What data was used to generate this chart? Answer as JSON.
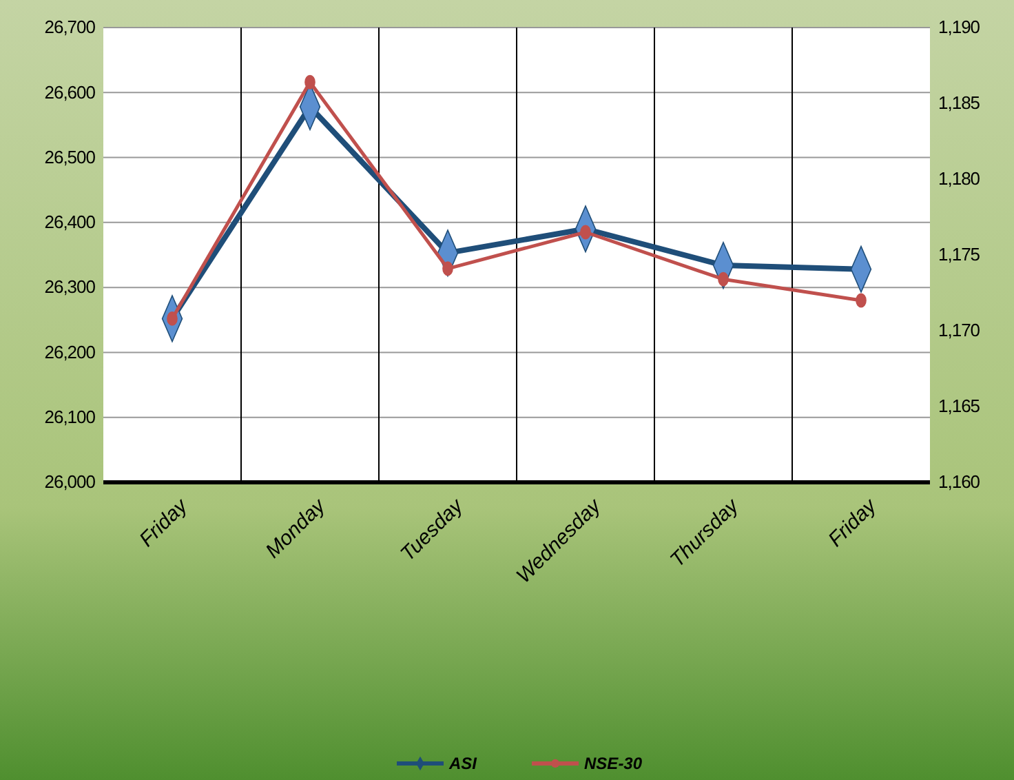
{
  "chart_data": {
    "type": "line",
    "categories": [
      "Friday",
      "Monday",
      "Tuesday",
      "Wednesday",
      "Thursday",
      "Friday"
    ],
    "series": [
      {
        "name": "ASI",
        "color": "#1f4e79",
        "values": [
          26252,
          26578,
          26353,
          26390,
          26334,
          26328
        ],
        "marker": "diamond"
      },
      {
        "name": "NSE-30",
        "color": "#c0504d",
        "values": [
          1170.8,
          1186.4,
          1174.1,
          1176.5,
          1173.4,
          1172.0
        ],
        "axis": "y2",
        "marker": "circle"
      }
    ],
    "ylim": [
      26000,
      26700
    ],
    "yticks": [
      {
        "value": 26000,
        "label": "26,000"
      },
      {
        "value": 26100,
        "label": "26,100"
      },
      {
        "value": 26200,
        "label": "26,200"
      },
      {
        "value": 26300,
        "label": "26,300"
      },
      {
        "value": 26400,
        "label": "26,400"
      },
      {
        "value": 26500,
        "label": "26,500"
      },
      {
        "value": 26600,
        "label": "26,600"
      },
      {
        "value": 26700,
        "label": "26,700"
      }
    ],
    "y2lim": [
      1160,
      1190
    ],
    "y2ticks": [
      {
        "value": 1160,
        "label": "1,160"
      },
      {
        "value": 1165,
        "label": "1,165"
      },
      {
        "value": 1170,
        "label": "1,170"
      },
      {
        "value": 1175,
        "label": "1,175"
      },
      {
        "value": 1180,
        "label": "1,180"
      },
      {
        "value": 1185,
        "label": "1,185"
      },
      {
        "value": 1190,
        "label": "1,190"
      }
    ],
    "grid": true,
    "legend": "bottom"
  }
}
